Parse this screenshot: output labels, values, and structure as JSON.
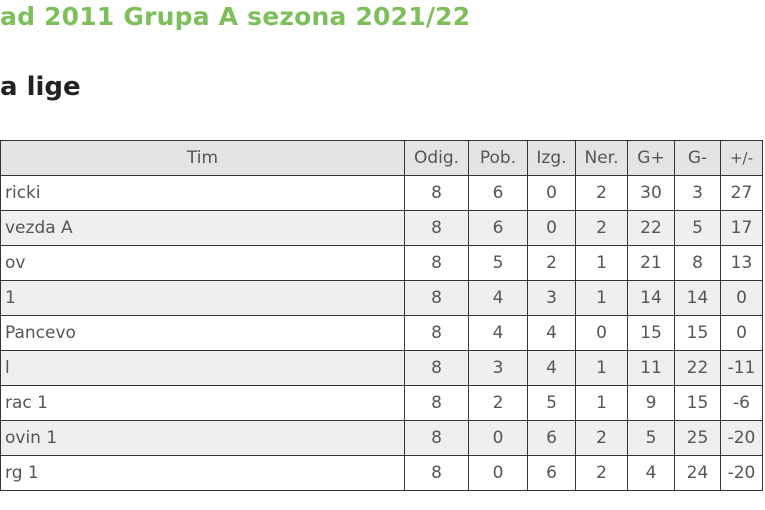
{
  "title": "ad 2011 Grupa A sezona 2021/22",
  "subtitle": "a lige",
  "table": {
    "headers": [
      "Tim",
      "Odig.",
      "Pob.",
      "Izg.",
      "Ner.",
      "G+",
      "G-",
      "+/-"
    ],
    "rows": [
      [
        "ricki",
        "8",
        "6",
        "0",
        "2",
        "30",
        "3",
        "27"
      ],
      [
        "vezda A",
        "8",
        "6",
        "0",
        "2",
        "22",
        "5",
        "17"
      ],
      [
        "ov",
        "8",
        "5",
        "2",
        "1",
        "21",
        "8",
        "13"
      ],
      [
        "1",
        "8",
        "4",
        "3",
        "1",
        "14",
        "14",
        "0"
      ],
      [
        "Pancevo",
        "8",
        "4",
        "4",
        "0",
        "15",
        "15",
        "0"
      ],
      [
        "l",
        "8",
        "3",
        "4",
        "1",
        "11",
        "22",
        "-11"
      ],
      [
        "rac 1",
        "8",
        "2",
        "5",
        "1",
        "9",
        "15",
        "-6"
      ],
      [
        "ovin 1",
        "8",
        "0",
        "6",
        "2",
        "5",
        "25",
        "-20"
      ],
      [
        "rg 1",
        "8",
        "0",
        "6",
        "2",
        "4",
        "24",
        "-20"
      ]
    ]
  },
  "colors": {
    "title": "#7dbf5b",
    "header_bg": "#e4e4e4",
    "alt_row_bg": "#efefef"
  }
}
